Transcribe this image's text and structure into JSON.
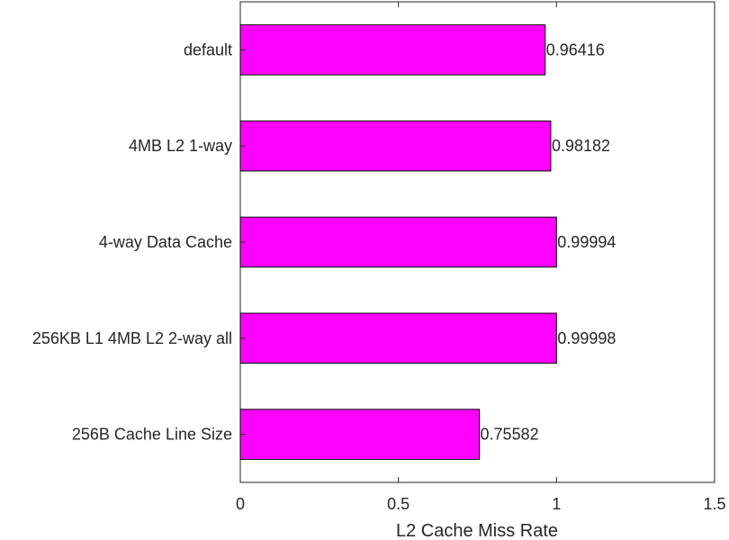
{
  "chart_data": {
    "type": "bar",
    "orientation": "horizontal",
    "categories": [
      "default",
      "4MB L2 1-way",
      "4-way Data Cache",
      "256KB L1 4MB L2 2-way all",
      "256B Cache Line Size"
    ],
    "values": [
      0.96416,
      0.98182,
      0.99994,
      0.99998,
      0.75582
    ],
    "data_labels": [
      "0.96416",
      "0.98182",
      "0.99994",
      "0.99998",
      "0.75582"
    ],
    "title": "",
    "xlabel": "L2 Cache Miss Rate",
    "ylabel": "",
    "xlim": [
      0,
      1.5
    ],
    "xticks": [
      0,
      0.5,
      1,
      1.5
    ],
    "xtick_labels": [
      "0",
      "0.5",
      "1",
      "1.5"
    ],
    "grid": false,
    "legend": "none",
    "bar_color": "#ff00ff",
    "bar_edge_color": "#000000",
    "axis_color": "#262626"
  }
}
